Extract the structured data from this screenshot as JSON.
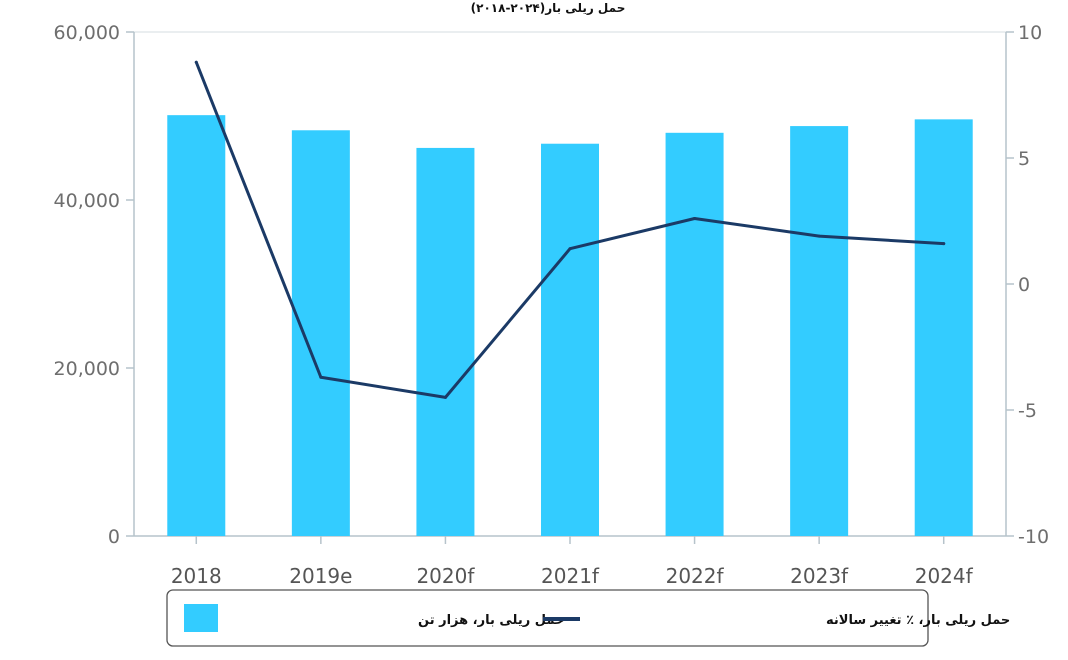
{
  "chart_data": {
    "type": "bar+line",
    "title": "حمل ریلی بار(۲۰۲۴-۲۰۱۸)",
    "categories": [
      "2018",
      "2019e",
      "2020f",
      "2021f",
      "2022f",
      "2023f",
      "2024f"
    ],
    "series": [
      {
        "name": "حمل ریلی بار، هزار تن",
        "type": "bar",
        "axis": "left",
        "color": "#33ccff",
        "values": [
          50100,
          48300,
          46200,
          46700,
          48000,
          48800,
          49600
        ]
      },
      {
        "name": "حمل ریلی بار، ٪ تغییر سالانه",
        "type": "line",
        "axis": "right",
        "color": "#1b3a66",
        "values": [
          8.8,
          -3.7,
          -4.5,
          1.4,
          2.6,
          1.9,
          1.6
        ]
      }
    ],
    "y_left": {
      "min": 0,
      "max": 60000,
      "ticks": [
        "0",
        "20,000",
        "40,000",
        "60,000"
      ],
      "tick_values": [
        0,
        20000,
        40000,
        60000
      ]
    },
    "y_right": {
      "min": -10,
      "max": 10,
      "ticks": [
        "-10",
        "-5",
        "0",
        "5",
        "10"
      ],
      "tick_values": [
        -10,
        -5,
        0,
        5,
        10
      ]
    },
    "grid": false,
    "legend_position": "bottom"
  }
}
